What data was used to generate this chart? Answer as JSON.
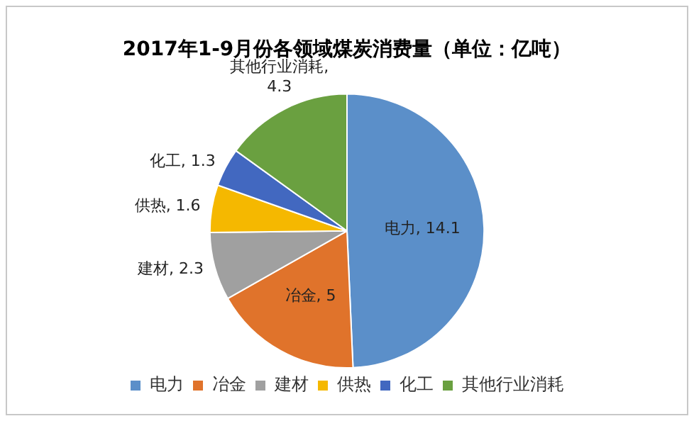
{
  "chart_data": {
    "type": "pie",
    "title": "2017年1-9月份各领域煤炭消费量（单位：亿吨）",
    "categories": [
      "电力",
      "冶金",
      "建材",
      "供热",
      "化工",
      "其他行业消耗"
    ],
    "values": [
      14.1,
      5,
      2.3,
      1.6,
      1.3,
      4.3
    ],
    "value_labels": [
      "电力, 14.1",
      "冶金, 5",
      "建材, 2.3",
      "供热, 1.6",
      "化工, 1.3",
      "其他行业消耗, 4.3"
    ],
    "colors": [
      "#5b8fc9",
      "#e0732b",
      "#a0a0a0",
      "#f5b800",
      "#4268c0",
      "#6aa040"
    ],
    "legend": "bottom"
  }
}
